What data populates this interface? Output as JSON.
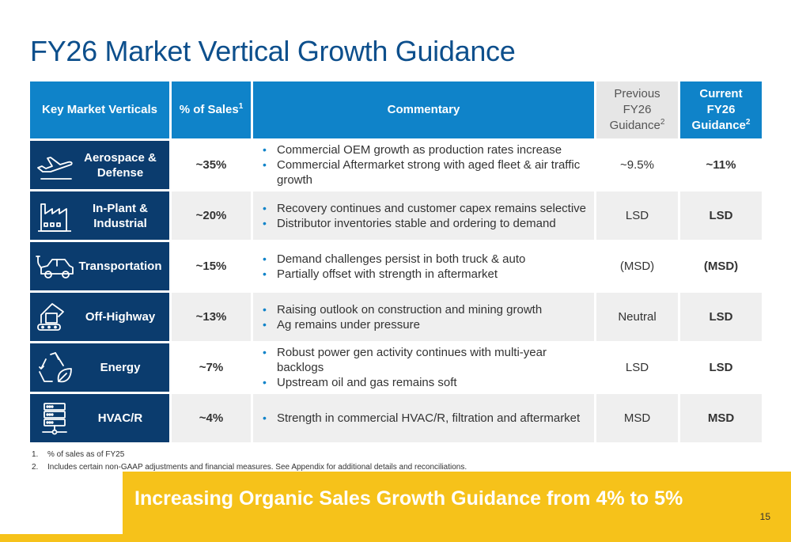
{
  "title": "FY26 Market Vertical Growth Guidance",
  "table": {
    "headers": {
      "verticals": "Key Market Verticals",
      "sales": "% of Sales",
      "sales_sup": "1",
      "commentary": "Commentary",
      "prev_line1": "Previous",
      "prev_line2": "FY26",
      "prev_line3": "Guidance",
      "prev_sup": "2",
      "curr_line1": "Current",
      "curr_line2": "FY26",
      "curr_line3": "Guidance",
      "curr_sup": "2"
    },
    "rows": [
      {
        "icon": "airplane-icon",
        "label": "Aerospace & Defense",
        "pct": "~35%",
        "bullets": [
          "Commercial OEM growth as production rates increase",
          "Commercial Aftermarket strong with aged fleet & air traffic growth"
        ],
        "prev": "~9.5%",
        "curr": "~11%"
      },
      {
        "icon": "factory-icon",
        "label": "In-Plant & Industrial",
        "pct": "~20%",
        "bullets": [
          "Recovery continues and customer capex remains selective",
          "Distributor inventories stable and ordering to demand"
        ],
        "prev": "LSD",
        "curr": "LSD"
      },
      {
        "icon": "electric-car-icon",
        "label": "Transportation",
        "pct": "~15%",
        "bullets": [
          "Demand challenges persist in both truck & auto",
          "Partially offset with strength in aftermarket"
        ],
        "prev": "(MSD)",
        "curr": "(MSD)"
      },
      {
        "icon": "excavator-icon",
        "label": "Off-Highway",
        "pct": "~13%",
        "bullets": [
          "Raising outlook on construction and mining growth",
          "Ag remains under pressure"
        ],
        "prev": "Neutral",
        "curr": "LSD"
      },
      {
        "icon": "recycle-leaf-icon",
        "label": "Energy",
        "pct": "~7%",
        "bullets": [
          "Robust power gen activity continues with multi-year backlogs",
          "Upstream oil and gas remains soft"
        ],
        "prev": "LSD",
        "curr": "LSD"
      },
      {
        "icon": "server-icon",
        "label": "HVAC/R",
        "pct": "~4%",
        "bullets": [
          "Strength in commercial HVAC/R, filtration and aftermarket"
        ],
        "prev": "MSD",
        "curr": "MSD"
      }
    ]
  },
  "footnotes": [
    {
      "num": "1.",
      "text": "% of sales as of FY25"
    },
    {
      "num": "2.",
      "text": "Includes certain non-GAAP adjustments and financial measures. See Appendix for additional details and reconciliations."
    }
  ],
  "banner": "Increasing Organic Sales Growth Guidance from 4% to 5%",
  "page_number": "15",
  "colors": {
    "title": "#0d4f8c",
    "header": "#0f83c9",
    "vertical_cell": "#0b3c6e",
    "banner": "#f6c21a"
  }
}
